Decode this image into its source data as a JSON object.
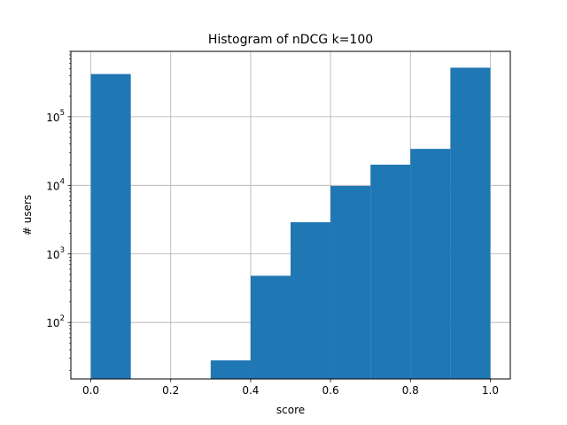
{
  "chart_data": {
    "type": "bar",
    "title": "Histogram of nDCG k=100",
    "xlabel": "score",
    "ylabel": "# users",
    "yscale": "log",
    "grid": true,
    "bar_color": "#1f77b4",
    "bins": [
      {
        "x0": 0.0,
        "x1": 0.1,
        "value": 420000
      },
      {
        "x0": 0.1,
        "x1": 0.2,
        "value": 0
      },
      {
        "x0": 0.2,
        "x1": 0.3,
        "value": 0
      },
      {
        "x0": 0.3,
        "x1": 0.4,
        "value": 28
      },
      {
        "x0": 0.4,
        "x1": 0.5,
        "value": 480
      },
      {
        "x0": 0.5,
        "x1": 0.6,
        "value": 2900
      },
      {
        "x0": 0.6,
        "x1": 0.7,
        "value": 9800
      },
      {
        "x0": 0.7,
        "x1": 0.8,
        "value": 20000
      },
      {
        "x0": 0.8,
        "x1": 0.9,
        "value": 34000
      },
      {
        "x0": 0.9,
        "x1": 1.0,
        "value": 520000
      }
    ],
    "xlim": [
      -0.05,
      1.05
    ],
    "ylim": [
      15,
      900000
    ],
    "xticks": [
      {
        "value": 0.0,
        "label": "0.0"
      },
      {
        "value": 0.2,
        "label": "0.2"
      },
      {
        "value": 0.4,
        "label": "0.4"
      },
      {
        "value": 0.6,
        "label": "0.6"
      },
      {
        "value": 0.8,
        "label": "0.8"
      },
      {
        "value": 1.0,
        "label": "1.0"
      }
    ],
    "yticks": [
      {
        "value": 100,
        "base": "10",
        "exp": "2"
      },
      {
        "value": 1000,
        "base": "10",
        "exp": "3"
      },
      {
        "value": 10000,
        "base": "10",
        "exp": "4"
      },
      {
        "value": 100000,
        "base": "10",
        "exp": "5"
      }
    ]
  }
}
